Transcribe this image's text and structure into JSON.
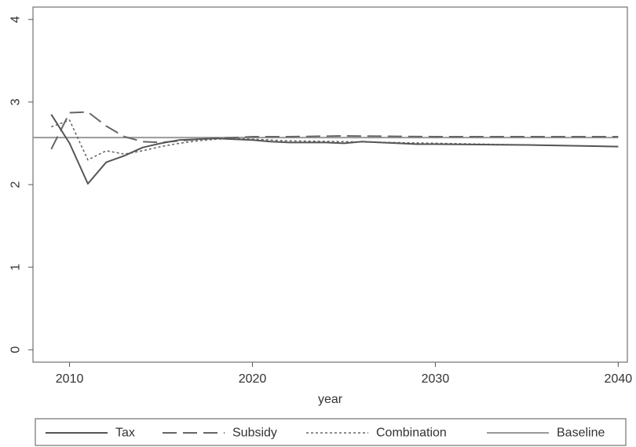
{
  "chart_data": {
    "type": "line",
    "xlabel": "year",
    "ylabel": "",
    "xlim": [
      2008,
      2040.5
    ],
    "ylim": [
      -0.15,
      4.15
    ],
    "x_ticks": [
      2010,
      2020,
      2030,
      2040
    ],
    "y_ticks": [
      0,
      1,
      2,
      3,
      4
    ],
    "grid": false,
    "legend_position": "bottom",
    "series": [
      {
        "name": "Tax",
        "style": "solid",
        "color": "#555555",
        "x": [
          2009,
          2010,
          2011,
          2012,
          2013,
          2014,
          2015,
          2016,
          2017,
          2018,
          2019,
          2020,
          2021,
          2022,
          2023,
          2024,
          2025,
          2026,
          2027,
          2028,
          2029,
          2030,
          2035,
          2040
        ],
        "values": [
          2.85,
          2.5,
          2.01,
          2.27,
          2.35,
          2.45,
          2.5,
          2.54,
          2.55,
          2.56,
          2.55,
          2.54,
          2.52,
          2.51,
          2.51,
          2.51,
          2.5,
          2.52,
          2.51,
          2.5,
          2.49,
          2.49,
          2.48,
          2.46
        ]
      },
      {
        "name": "Subsidy",
        "style": "dash",
        "color": "#666666",
        "x": [
          2009,
          2010,
          2011,
          2012,
          2013,
          2014,
          2015,
          2016,
          2017,
          2018,
          2019,
          2020,
          2022,
          2025,
          2030,
          2035,
          2040
        ],
        "values": [
          2.43,
          2.87,
          2.88,
          2.71,
          2.58,
          2.52,
          2.51,
          2.53,
          2.55,
          2.56,
          2.57,
          2.58,
          2.58,
          2.59,
          2.58,
          2.58,
          2.58
        ]
      },
      {
        "name": "Combination",
        "style": "dot",
        "color": "#666666",
        "x": [
          2009,
          2010,
          2011,
          2012,
          2013,
          2014,
          2015,
          2016,
          2017,
          2018,
          2019,
          2020,
          2022,
          2025,
          2030,
          2035,
          2040
        ],
        "values": [
          2.7,
          2.78,
          2.3,
          2.41,
          2.37,
          2.41,
          2.46,
          2.5,
          2.53,
          2.55,
          2.56,
          2.55,
          2.53,
          2.52,
          2.5,
          2.48,
          2.46
        ]
      },
      {
        "name": "Baseline",
        "style": "solid-light",
        "color": "#9a9a9a",
        "x": [
          2008,
          2040
        ],
        "values": [
          2.57,
          2.57
        ]
      }
    ]
  }
}
